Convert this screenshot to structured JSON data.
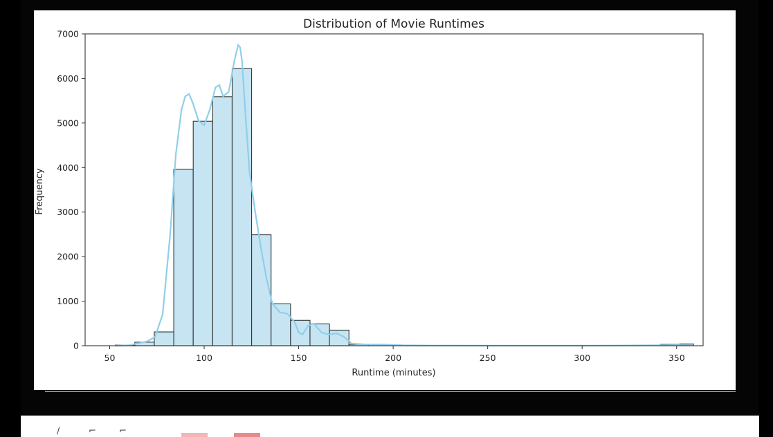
{
  "chart_data": {
    "type": "bar",
    "title": "Distribution of Movie Runtimes",
    "xlabel": "Runtime (minutes)",
    "ylabel": "Frequency",
    "xlim": [
      37,
      364
    ],
    "ylim": [
      0,
      7000
    ],
    "x_ticks": [
      50,
      100,
      150,
      200,
      250,
      300,
      350
    ],
    "y_ticks": [
      0,
      1000,
      2000,
      3000,
      4000,
      5000,
      6000,
      7000
    ],
    "grid": false,
    "legend": "none",
    "bar_color": "#c6e4f2",
    "edge_color": "#333333",
    "kde_color": "#8fcfea",
    "bins": [
      {
        "start": 53.0,
        "end": 63.3,
        "value": 15
      },
      {
        "start": 63.3,
        "end": 73.6,
        "value": 80
      },
      {
        "start": 73.6,
        "end": 83.9,
        "value": 310
      },
      {
        "start": 83.9,
        "end": 94.2,
        "value": 3960
      },
      {
        "start": 94.2,
        "end": 104.5,
        "value": 5040
      },
      {
        "start": 104.5,
        "end": 114.8,
        "value": 5590
      },
      {
        "start": 114.8,
        "end": 125.1,
        "value": 6220
      },
      {
        "start": 125.1,
        "end": 135.4,
        "value": 2490
      },
      {
        "start": 135.4,
        "end": 145.7,
        "value": 940
      },
      {
        "start": 145.7,
        "end": 156.0,
        "value": 570
      },
      {
        "start": 156.0,
        "end": 166.3,
        "value": 490
      },
      {
        "start": 166.3,
        "end": 176.6,
        "value": 350
      },
      {
        "start": 176.6,
        "end": 186.9,
        "value": 30
      },
      {
        "start": 186.9,
        "end": 197.2,
        "value": 25
      },
      {
        "start": 197.2,
        "end": 207.5,
        "value": 10
      },
      {
        "start": 207.5,
        "end": 217.8,
        "value": 5
      },
      {
        "start": 341.4,
        "end": 351.7,
        "value": 30
      },
      {
        "start": 351.7,
        "end": 359.0,
        "value": 40
      }
    ],
    "kde": {
      "x": [
        53,
        60,
        66,
        70,
        74,
        78,
        82,
        85,
        88,
        90,
        92,
        94,
        97,
        100,
        103,
        106,
        108,
        110,
        113,
        116,
        118,
        119,
        120,
        122,
        124,
        127,
        130,
        133,
        136,
        140,
        144,
        148,
        150,
        152,
        155,
        158,
        162,
        166,
        170,
        174,
        178,
        185,
        195,
        205,
        220,
        260,
        300,
        340,
        359
      ],
      "y": [
        0,
        10,
        60,
        100,
        200,
        700,
        2500,
        4300,
        5300,
        5600,
        5650,
        5450,
        5050,
        4950,
        5300,
        5800,
        5850,
        5600,
        5700,
        6400,
        6750,
        6700,
        6400,
        5100,
        3900,
        3000,
        2200,
        1500,
        950,
        750,
        720,
        520,
        300,
        250,
        450,
        500,
        300,
        250,
        280,
        200,
        50,
        30,
        30,
        10,
        5,
        2,
        2,
        10,
        15
      ]
    }
  }
}
